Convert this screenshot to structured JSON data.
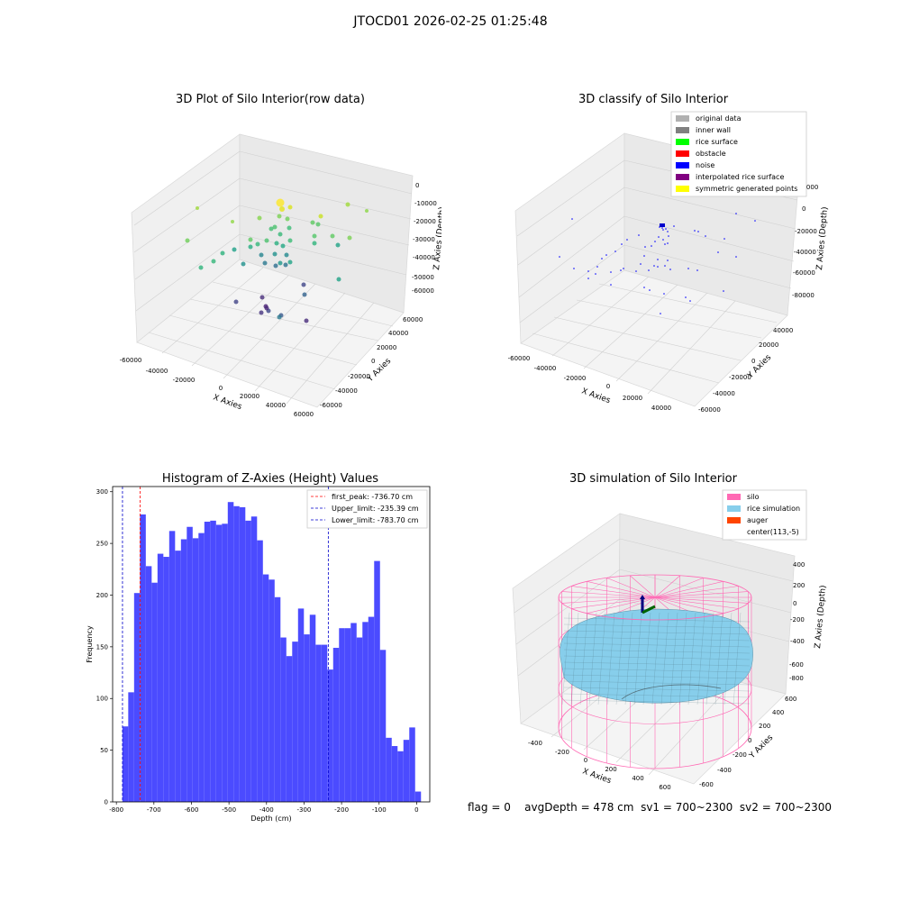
{
  "figure_title": "JTOCD01 2026-02-25 01:25:48",
  "footer": {
    "flag": "flag = 0",
    "avg_depth": "avgDepth = 478 cm",
    "sv1": "sv1 = 700~2300",
    "sv2": "sv2 = 700~2300"
  },
  "chart_data": [
    {
      "type": "scatter",
      "title": "3D Plot of Silo Interior(row data)",
      "xlabel": "X Axies",
      "ylabel": "Y Axies",
      "zlabel": "Z Axies (Depth)",
      "x_ticks": [
        "-60000",
        "-40000",
        "-20000",
        "0",
        "20000",
        "40000",
        "60000"
      ],
      "y_ticks": [
        "-60000",
        "-40000",
        "-20000",
        "0",
        "20000",
        "40000",
        "60000"
      ],
      "z_ticks": [
        "-60000",
        "-50000",
        "-40000",
        "-30000",
        "-20000",
        "-10000",
        "0"
      ],
      "colormap": "viridis",
      "grid": true
    },
    {
      "type": "scatter",
      "title": "3D classify of Silo Interior",
      "xlabel": "X Axies",
      "ylabel": "Y Axies",
      "zlabel": "Z Axies (Depth)",
      "x_ticks": [
        "-60000",
        "-40000",
        "-20000",
        "0",
        "20000",
        "40000"
      ],
      "y_ticks": [
        "-60000",
        "-40000",
        "-20000",
        "0",
        "20000",
        "40000"
      ],
      "z_ticks": [
        "-80000",
        "-60000",
        "-40000",
        "-20000",
        "0",
        "20000"
      ],
      "legend_position": "top-right",
      "legend": [
        {
          "label": "original data",
          "color": "#b0b0b0"
        },
        {
          "label": "inner wall",
          "color": "#808080"
        },
        {
          "label": "rice surface",
          "color": "#00ff00"
        },
        {
          "label": "obstacle",
          "color": "#ff0000"
        },
        {
          "label": "noise",
          "color": "#0000ff"
        },
        {
          "label": "interpolated rice surface",
          "color": "#800080"
        },
        {
          "label": "symmetric generated points",
          "color": "#ffff00"
        }
      ],
      "grid": true
    },
    {
      "type": "bar",
      "title": "Histogram of Z-Axies (Height) Values",
      "xlabel": "Depth (cm)",
      "ylabel": "Frequency",
      "xlim": [
        -810,
        35
      ],
      "ylim": [
        0,
        305
      ],
      "x_ticks": [
        -800,
        -700,
        -600,
        -500,
        -400,
        -300,
        -200,
        -100,
        0
      ],
      "y_ticks": [
        0,
        50,
        100,
        150,
        200,
        250,
        300
      ],
      "bin_start": -784,
      "bin_width": 15.6,
      "values": [
        73,
        106,
        202,
        278,
        228,
        212,
        240,
        237,
        262,
        243,
        254,
        266,
        255,
        260,
        271,
        272,
        268,
        269,
        290,
        286,
        285,
        272,
        276,
        253,
        220,
        215,
        198,
        159,
        141,
        155,
        187,
        162,
        181,
        152,
        152,
        128,
        149,
        168,
        168,
        173,
        159,
        174,
        179,
        233,
        147,
        62,
        54,
        49,
        60,
        72,
        10
      ],
      "bar_color": "#4b4bff",
      "vlines": [
        {
          "label": "first_peak: -736.70 cm",
          "x": -736.7,
          "color": "#ff0000"
        },
        {
          "label": "Upper_limit: -235.39 cm",
          "x": -235.39,
          "color": "#0000cc"
        },
        {
          "label": "Lower_limit: -783.70 cm",
          "x": -783.7,
          "color": "#0000cc"
        }
      ],
      "legend_position": "top-right"
    },
    {
      "type": "surface",
      "title": "3D simulation of Silo Interior",
      "xlabel": "X Axies",
      "ylabel": "Y Axies",
      "zlabel": "Z Axies (Depth)",
      "x_ticks": [
        "-400",
        "-200",
        "0",
        "200",
        "400",
        "600"
      ],
      "y_ticks": [
        "-600",
        "-400",
        "-200",
        "0",
        "200",
        "400",
        "600"
      ],
      "z_ticks": [
        "-800",
        "-600",
        "-400",
        "-200",
        "0",
        "200",
        "400"
      ],
      "legend_position": "top-right",
      "legend": [
        {
          "label": "silo",
          "color": "#ff69b4"
        },
        {
          "label": "rice simulation",
          "color": "#87ceeb"
        },
        {
          "label": "auger",
          "color": "#ff4500"
        },
        {
          "label": "center(113,-5)",
          "color": ""
        }
      ]
    }
  ]
}
